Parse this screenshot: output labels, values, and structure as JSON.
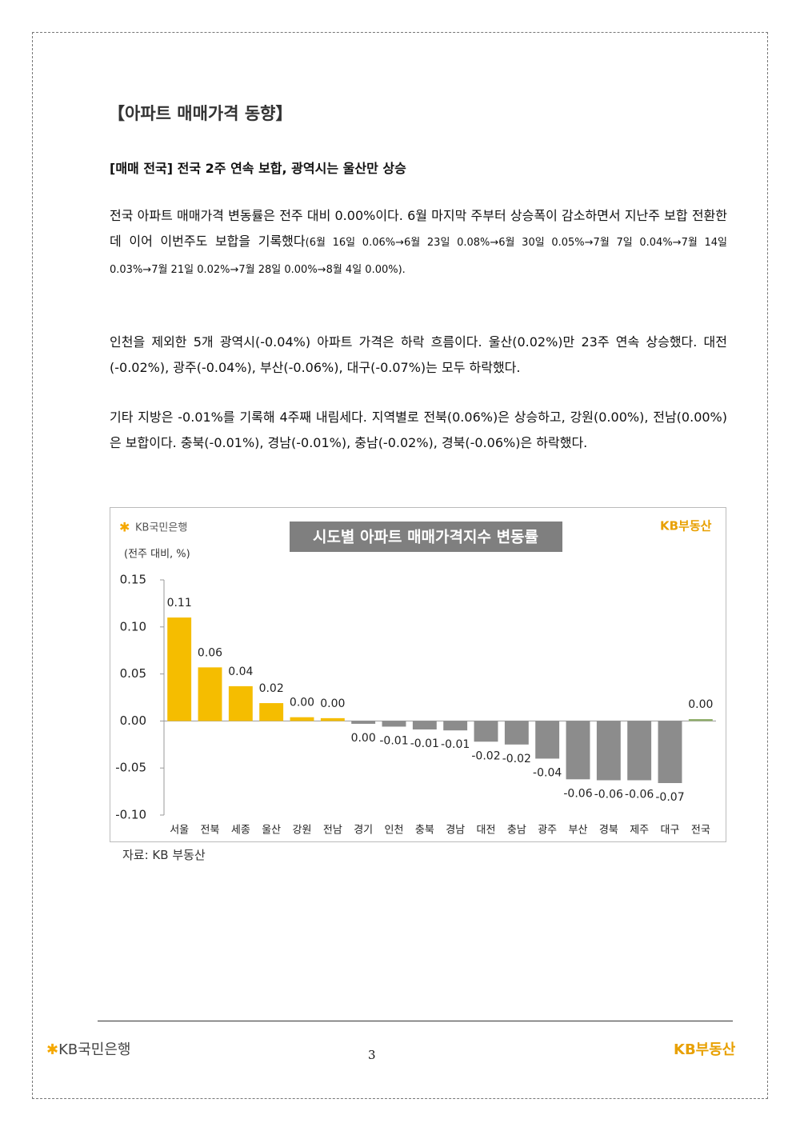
{
  "header": {
    "title": "【아파트 매매가격 동향】",
    "subtitle": "[매매 전국] 전국 2주 연속 보합, 광역시는 울산만 상승"
  },
  "paragraphs": [
    [
      "전국 아파트 매매가격 변동률은 전주 대비 0.00%이다. 6월 마지막 주부터 상승폭이 감소하면서 지난주 보합 전환한 데 이어 이번주도 보합을 기록했다",
      "(6월 16일 0.06%→6월 23일 0.08%→6월 30일 0.05%→7월 7일 0.04%→7월 14일 0.03%→7월 21일 0.02%→7월 28일 0.00%→8월 4일 0.00%)."
    ],
    [
      "인천을 제외한 5개 광역시(-0.04%) 아파트 가격은 하락 흐름이다. 울산(0.02%)만 23주 연속 상승했다. 대전(-0.02%), 광주(-0.04%), 부산(-0.06%), 대구(-0.07%)는 모두 하락했다."
    ],
    [
      "기타 지방은 -0.01%를 기록해 4주째 내림세다. 지역별로 전북(0.06%)은 상승하고, 강원(0.00%), 전남(0.00%)은 보합이다. 충북(-0.01%), 경남(-0.01%), 충남(-0.02%), 경북(-0.06%)은 하락했다."
    ]
  ],
  "chart_data": {
    "type": "bar",
    "title": "시도별 아파트 매매가격지수 변동률",
    "y_label": "(전주 대비, %)",
    "brand_left": "KB국민은행",
    "brand_right": "KB부동산",
    "categories": [
      "서울",
      "전북",
      "세종",
      "울산",
      "강원",
      "전남",
      "경기",
      "인천",
      "충북",
      "경남",
      "대전",
      "충남",
      "광주",
      "부산",
      "경북",
      "제주",
      "대구",
      "전국"
    ],
    "values": [
      0.11,
      0.057,
      0.037,
      0.019,
      0.004,
      0.003,
      -0.003,
      -0.006,
      -0.009,
      -0.01,
      -0.022,
      -0.025,
      -0.04,
      -0.062,
      -0.063,
      -0.063,
      -0.066,
      0.002
    ],
    "value_labels": [
      "0.11",
      "0.06",
      "0.04",
      "0.02",
      "0.00",
      "0.00",
      "0.00",
      "-0.01",
      "-0.01",
      "-0.01",
      "-0.02",
      "-0.02",
      "-0.04",
      "-0.06",
      "-0.06",
      "-0.06",
      "-0.07",
      "0.00"
    ],
    "colors": [
      "#f5bd00",
      "#f5bd00",
      "#f5bd00",
      "#f5bd00",
      "#f5bd00",
      "#f5bd00",
      "#8c8c8c",
      "#8c8c8c",
      "#8c8c8c",
      "#8c8c8c",
      "#8c8c8c",
      "#8c8c8c",
      "#8c8c8c",
      "#8c8c8c",
      "#8c8c8c",
      "#8c8c8c",
      "#8c8c8c",
      "#8fae6a"
    ],
    "ylim": [
      -0.1,
      0.15
    ],
    "yticks": [
      0.15,
      {
        "value": 0.1,
        "label": "0.10"
      },
      0.05,
      {
        "value": 0,
        "label": "0.00"
      },
      -0.05,
      {
        "value": -0.1,
        "label": "-0.10"
      }
    ],
    "grid": false
  },
  "source": "자료: KB 부동산",
  "footer": {
    "brand_left": "KB국민은행",
    "page": "3",
    "brand_right": "KB부동산"
  }
}
